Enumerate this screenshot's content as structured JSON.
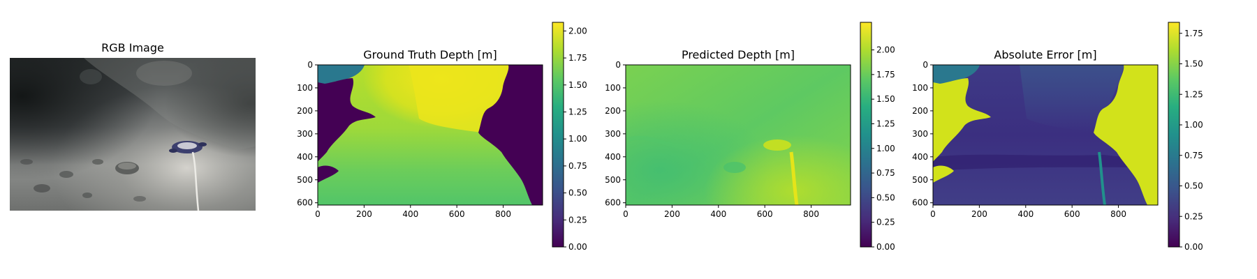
{
  "chart_data": [
    {
      "type": "image",
      "title": "RGB Image",
      "axes_visible": false,
      "scene": [
        "underwater-rock-wall",
        "seafloor-sand",
        "cobbles",
        "underwater-drone",
        "tether-cable"
      ]
    },
    {
      "type": "heatmap",
      "title": "Ground Truth Depth [m]",
      "colormap": "viridis",
      "xlim": [
        0,
        970
      ],
      "ylim": [
        610,
        0
      ],
      "xticks": [
        "0",
        "200",
        "400",
        "600",
        "800"
      ],
      "yticks": [
        "0",
        "100",
        "200",
        "300",
        "400",
        "500",
        "600"
      ],
      "colorbar": {
        "range": [
          0.0,
          2.08
        ],
        "ticks": [
          "0.00",
          "0.25",
          "0.50",
          "0.75",
          "1.00",
          "1.25",
          "1.50",
          "1.75",
          "2.00"
        ]
      },
      "regions": {
        "invalid_value": 0.0,
        "top_center_max": 2.0,
        "bottom_min": 1.4,
        "top_left_patch": 1.0
      }
    },
    {
      "type": "heatmap",
      "title": "Predicted Depth [m]",
      "colormap": "viridis",
      "xlim": [
        0,
        970
      ],
      "ylim": [
        610,
        0
      ],
      "xticks": [
        "0",
        "200",
        "400",
        "600",
        "800"
      ],
      "yticks": [
        "0",
        "100",
        "200",
        "300",
        "400",
        "500",
        "600"
      ],
      "colorbar": {
        "range": [
          0.0,
          2.28
        ],
        "ticks": [
          "0.00",
          "0.25",
          "0.50",
          "0.75",
          "1.00",
          "1.25",
          "1.50",
          "1.75",
          "2.00"
        ]
      },
      "regions": {
        "typical": 1.5,
        "cable_max": 2.25
      }
    },
    {
      "type": "heatmap",
      "title": "Absolute Error [m]",
      "colormap": "viridis",
      "xlim": [
        0,
        970
      ],
      "ylim": [
        610,
        0
      ],
      "xticks": [
        "0",
        "200",
        "400",
        "600",
        "800"
      ],
      "yticks": [
        "0",
        "100",
        "200",
        "300",
        "400",
        "500",
        "600"
      ],
      "colorbar": {
        "range": [
          0.0,
          1.84
        ],
        "ticks": [
          "0.00",
          "0.25",
          "0.50",
          "0.75",
          "1.00",
          "1.25",
          "1.50",
          "1.75"
        ]
      },
      "regions": {
        "typical": 0.1,
        "invalid_areas": 1.6,
        "cable": 0.8
      }
    }
  ]
}
